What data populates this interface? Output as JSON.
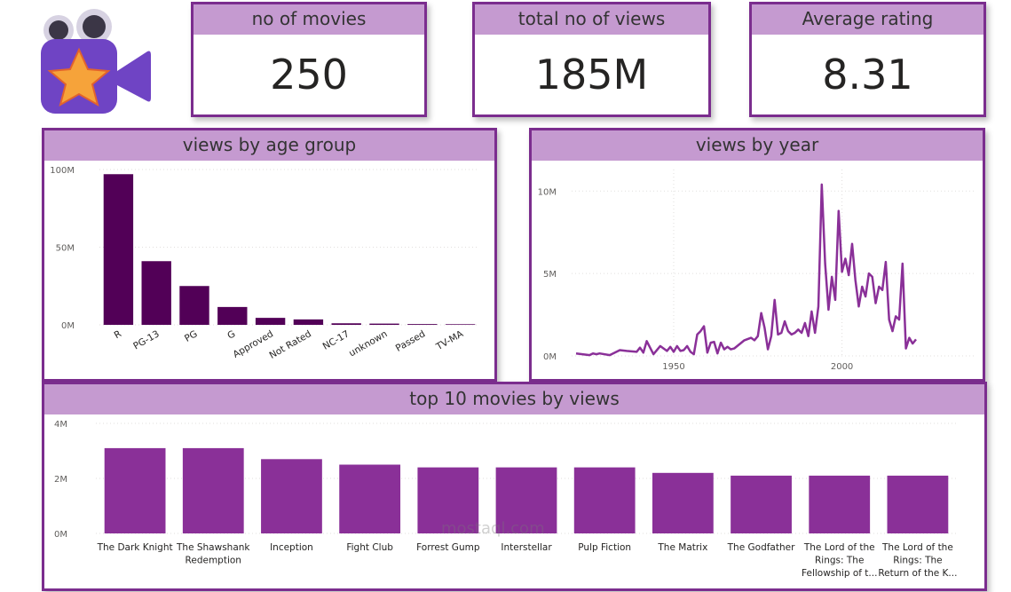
{
  "kpis": [
    {
      "label": "no of movies",
      "value": "250"
    },
    {
      "label": "total no of views",
      "value": "185M"
    },
    {
      "label": "Average rating",
      "value": "8.31"
    }
  ],
  "colors": {
    "accent": "#7b2d8e",
    "header": "#c59ad0",
    "bar_dark": "#520057",
    "bar_mid": "#8a3098",
    "line": "#8a3098"
  },
  "logo_icon": "movie-camera-star-icon",
  "watermark": "mostaql.com",
  "chart_data": [
    {
      "type": "bar",
      "title": "views by age group",
      "categories": [
        "R",
        "PG-13",
        "PG",
        "G",
        "Approved",
        "Not Rated",
        "NC-17",
        "unknown",
        "Passed",
        "TV-MA"
      ],
      "values": [
        97,
        41,
        25,
        11.5,
        4.5,
        3.5,
        1,
        0.8,
        0.5,
        0.4
      ],
      "unit": "M",
      "yticks": [
        "0M",
        "50M",
        "100M"
      ],
      "ylim": [
        0,
        100
      ],
      "grid": true
    },
    {
      "type": "line",
      "title": "views by year",
      "x": [
        1921,
        1925,
        1926,
        1927,
        1928,
        1931,
        1934,
        1936,
        1939,
        1940,
        1941,
        1942,
        1944,
        1946,
        1948,
        1949,
        1950,
        1951,
        1952,
        1953,
        1954,
        1955,
        1956,
        1957,
        1958,
        1959,
        1960,
        1961,
        1962,
        1963,
        1964,
        1965,
        1966,
        1967,
        1968,
        1971,
        1973,
        1974,
        1975,
        1976,
        1977,
        1978,
        1979,
        1980,
        1981,
        1982,
        1983,
        1984,
        1985,
        1986,
        1987,
        1988,
        1989,
        1990,
        1991,
        1992,
        1993,
        1994,
        1995,
        1996,
        1997,
        1998,
        1999,
        2000,
        2001,
        2002,
        2003,
        2004,
        2005,
        2006,
        2007,
        2008,
        2009,
        2010,
        2011,
        2012,
        2013,
        2014,
        2015,
        2016,
        2017,
        2018,
        2019,
        2020,
        2021,
        2022
      ],
      "values": [
        0.15,
        0.05,
        0.15,
        0.1,
        0.15,
        0.05,
        0.35,
        0.3,
        0.25,
        0.5,
        0.2,
        0.9,
        0.1,
        0.6,
        0.3,
        0.55,
        0.25,
        0.6,
        0.3,
        0.35,
        0.6,
        0.25,
        0.1,
        1.3,
        1.5,
        1.8,
        0.2,
        0.8,
        0.85,
        0.15,
        0.8,
        0.4,
        0.55,
        0.4,
        0.45,
        0.95,
        1.1,
        0.95,
        1.2,
        2.6,
        1.7,
        0.4,
        1.2,
        3.4,
        1.3,
        1.4,
        2.1,
        1.5,
        1.3,
        1.4,
        1.6,
        1.4,
        2.0,
        1.2,
        2.7,
        1.4,
        3.0,
        10.4,
        5.6,
        2.8,
        4.8,
        3.4,
        8.8,
        5.1,
        5.9,
        4.9,
        6.8,
        4.6,
        3.0,
        4.2,
        3.6,
        5.0,
        4.8,
        3.2,
        4.2,
        4.0,
        5.7,
        2.2,
        1.5,
        2.4,
        2.2,
        5.6,
        0.45,
        1.1,
        0.75,
        1.0
      ],
      "unit": "M",
      "xticks": [
        "1950",
        "2000"
      ],
      "yticks": [
        "0M",
        "5M",
        "10M"
      ],
      "xlim": [
        1921,
        2022
      ],
      "ylim": [
        0,
        10.5
      ],
      "grid": true
    },
    {
      "type": "bar",
      "title": "top 10 movies by views",
      "categories": [
        [
          "The Dark Knight"
        ],
        [
          "The Shawshank",
          "Redemption"
        ],
        [
          "Inception"
        ],
        [
          "Fight Club"
        ],
        [
          "Forrest Gump"
        ],
        [
          "Interstellar"
        ],
        [
          "Pulp Fiction"
        ],
        [
          "The Matrix"
        ],
        [
          "The Godfather"
        ],
        [
          "The Lord of the",
          "Rings: The",
          "Fellowship of t..."
        ],
        [
          "The Lord of the",
          "Rings: The",
          "Return of the K..."
        ]
      ],
      "values": [
        3.1,
        3.1,
        2.7,
        2.5,
        2.4,
        2.4,
        2.4,
        2.2,
        2.1,
        2.1,
        2.1
      ],
      "unit": "M",
      "yticks": [
        "0M",
        "2M",
        "4M"
      ],
      "ylim": [
        0,
        4
      ],
      "grid": true
    }
  ]
}
